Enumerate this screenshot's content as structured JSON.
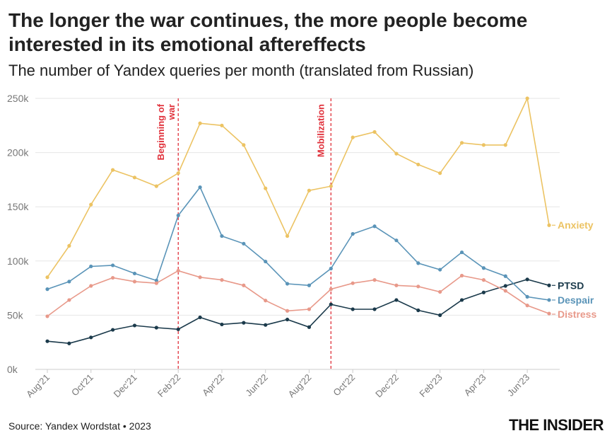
{
  "header": {
    "title": "The longer the war continues, the more people become interested in its emotional aftereffects",
    "subtitle": "The number of Yandex queries per month (translated from Russian)"
  },
  "footer": {
    "source": "Source: Yandex Wordstat • 2023",
    "logo": "THE INSIDER"
  },
  "chart_data": {
    "type": "line",
    "title": "The longer the war continues, the more people become interested in its emotional aftereffects",
    "subtitle": "The number of Yandex queries per month (translated from Russian)",
    "xlabel": "",
    "ylabel": "",
    "ylim": [
      0,
      250000
    ],
    "yticks": [
      0,
      50000,
      100000,
      150000,
      200000,
      250000
    ],
    "ytick_labels": [
      "0k",
      "50k",
      "100k",
      "150k",
      "200k",
      "250k"
    ],
    "grid": "horizontal",
    "legend": "direct labels at line ends",
    "x": [
      "Aug'21",
      "Sep'21",
      "Oct'21",
      "Nov'21",
      "Dec'21",
      "Jan'22",
      "Feb'22",
      "Mar'22",
      "Apr'22",
      "May'22",
      "Jun'22",
      "Jul'22",
      "Aug'22",
      "Sep'22",
      "Oct'22",
      "Nov'22",
      "Dec'22",
      "Jan'23",
      "Feb'23",
      "Mar'23",
      "Apr'23",
      "May'23",
      "Jun'23",
      "Jul'23"
    ],
    "xtick_labels": [
      "Aug'21",
      "Oct'21",
      "Dec'21",
      "Feb'22",
      "Apr'22",
      "Jun'22",
      "Aug'22",
      "Oct'22",
      "Dec'22",
      "Feb'23",
      "Apr'23",
      "Jun'23"
    ],
    "series": [
      {
        "name": "Anxiety",
        "color": "#ecc363",
        "values": [
          85000,
          114000,
          152000,
          184000,
          177000,
          169000,
          181000,
          227000,
          225000,
          207000,
          167000,
          123000,
          165000,
          169000,
          214000,
          219000,
          199000,
          189000,
          181000,
          209000,
          207000,
          207000,
          250000,
          133000
        ]
      },
      {
        "name": "PTSD",
        "color": "#1b3a4b",
        "values": [
          26000,
          24000,
          29500,
          36500,
          40500,
          38500,
          37000,
          48000,
          41500,
          43000,
          41000,
          46000,
          39000,
          60000,
          55500,
          55500,
          64000,
          54500,
          50000,
          64000,
          71000,
          77000,
          83000,
          77500
        ]
      },
      {
        "name": "Despair",
        "color": "#5a94b8",
        "values": [
          74000,
          81000,
          95000,
          96000,
          88500,
          82000,
          142000,
          168000,
          123000,
          116000,
          99500,
          79000,
          77500,
          93000,
          125000,
          132000,
          119000,
          98000,
          92000,
          108000,
          93500,
          86000,
          67000,
          64000
        ]
      },
      {
        "name": "Distress",
        "color": "#e8998a",
        "values": [
          49000,
          64000,
          77000,
          84500,
          81000,
          79500,
          91000,
          85000,
          82500,
          77500,
          63500,
          54000,
          55500,
          74000,
          79500,
          82500,
          77500,
          76500,
          71500,
          86500,
          82500,
          72500,
          59000,
          51500
        ]
      }
    ],
    "annotations": [
      {
        "label": "Beginning of war",
        "x": "Feb'22",
        "color": "#e0303a"
      },
      {
        "label": "Mobilization",
        "x": "Sep'22",
        "color": "#e0303a"
      }
    ]
  }
}
